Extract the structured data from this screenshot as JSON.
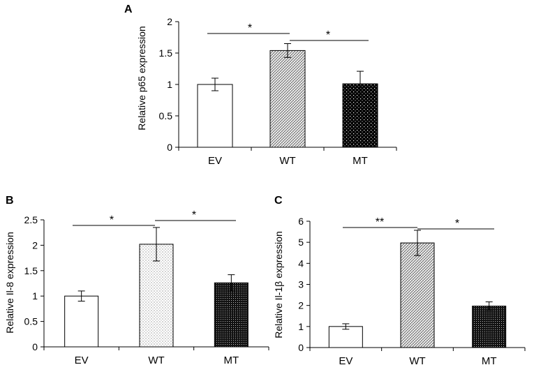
{
  "chart_data": [
    {
      "panel": "A",
      "type": "bar",
      "categories": [
        "EV",
        "WT",
        "MT"
      ],
      "values": [
        1.0,
        1.54,
        1.01
      ],
      "errors": [
        0.1,
        0.11,
        0.2
      ],
      "patterns": [
        "blank",
        "diagonal",
        "dots"
      ],
      "ylabel": "Relative p65 expression",
      "ylim": [
        0,
        2
      ],
      "yticks": [
        "0",
        "0.5",
        "1",
        "1.5",
        "2"
      ],
      "significance": [
        {
          "from": 0,
          "to": 1,
          "label": "*"
        },
        {
          "from": 1,
          "to": 2,
          "label": "*"
        }
      ]
    },
    {
      "panel": "B",
      "type": "bar",
      "categories": [
        "EV",
        "WT",
        "MT"
      ],
      "values": [
        1.0,
        2.02,
        1.26
      ],
      "errors": [
        0.1,
        0.33,
        0.16
      ],
      "patterns": [
        "blank",
        "sparse-dots",
        "dense"
      ],
      "ylabel": "Relative Il-8  expression",
      "ylim": [
        0,
        2.5
      ],
      "yticks": [
        "0",
        "0.5",
        "1",
        "1.5",
        "2",
        "2.5"
      ],
      "significance": [
        {
          "from": 0,
          "to": 1,
          "label": "*"
        },
        {
          "from": 1,
          "to": 2,
          "label": "*"
        }
      ]
    },
    {
      "panel": "C",
      "type": "bar",
      "categories": [
        "EV",
        "WT",
        "MT"
      ],
      "values": [
        1.0,
        4.97,
        1.97
      ],
      "errors": [
        0.13,
        0.6,
        0.2
      ],
      "patterns": [
        "blank",
        "diagonal",
        "dense"
      ],
      "ylabel": "Relative Il-1β  expression",
      "ylim": [
        0,
        6
      ],
      "yticks": [
        "0",
        "1",
        "2",
        "3",
        "4",
        "5",
        "6"
      ],
      "significance": [
        {
          "from": 0,
          "to": 1,
          "label": "**"
        },
        {
          "from": 1,
          "to": 2,
          "label": "*"
        }
      ]
    }
  ]
}
